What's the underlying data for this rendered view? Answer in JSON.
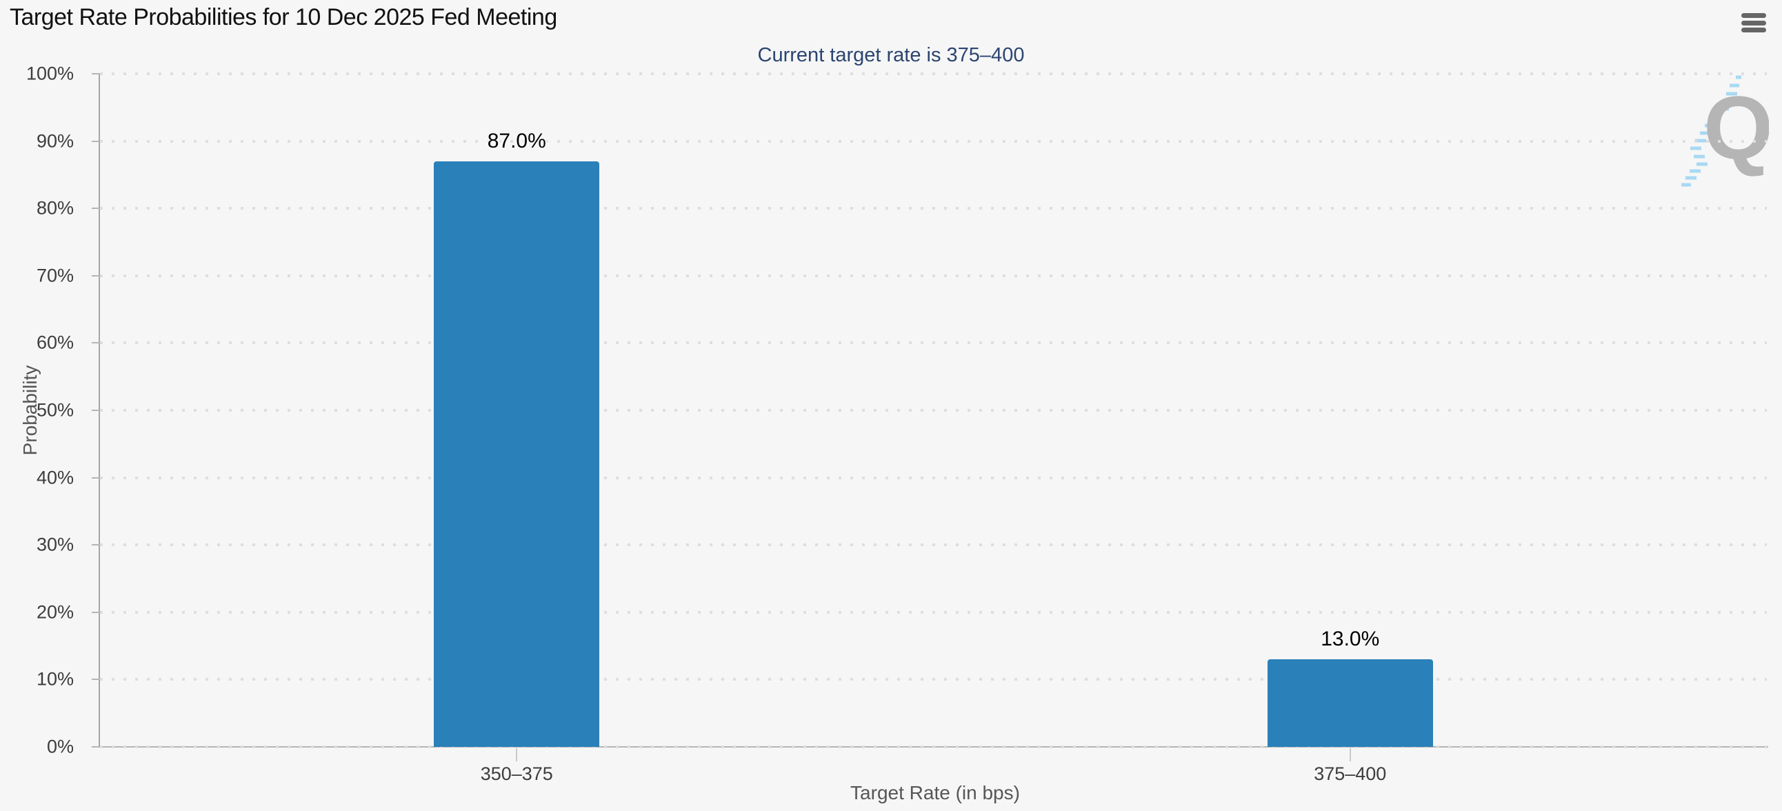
{
  "header": {
    "title": "Target Rate Probabilities for 10 Dec 2025 Fed Meeting",
    "subtitle": "Current target rate is 375–400",
    "menu_icon": "hamburger-icon"
  },
  "watermark": {
    "letter": "Q"
  },
  "colors": {
    "background": "#f6f6f6",
    "bar": "#2a80b9",
    "subtitle_text": "#2b4570",
    "axis_line": "#b5b5b5",
    "grid_dot": "#dedede",
    "tick_label": "#3d3d3d",
    "axis_title": "#565656",
    "menu_icon": "#666666",
    "watermark_letter": "#b5b5b5",
    "watermark_hatch": "#a9d9f3"
  },
  "chart_data": {
    "type": "bar",
    "title": "Target Rate Probabilities for 10 Dec 2025 Fed Meeting",
    "subtitle": "Current target rate is 375–400",
    "categories": [
      "350–375",
      "375–400"
    ],
    "values": [
      87.0,
      13.0
    ],
    "value_labels": [
      "87.0%",
      "13.0%"
    ],
    "xlabel": "Target Rate (in bps)",
    "ylabel": "Probability",
    "ylim": [
      0,
      100
    ],
    "ytick_step": 10,
    "ytick_suffix": "%",
    "grid": "dotted-horizontal",
    "legend": "none"
  }
}
